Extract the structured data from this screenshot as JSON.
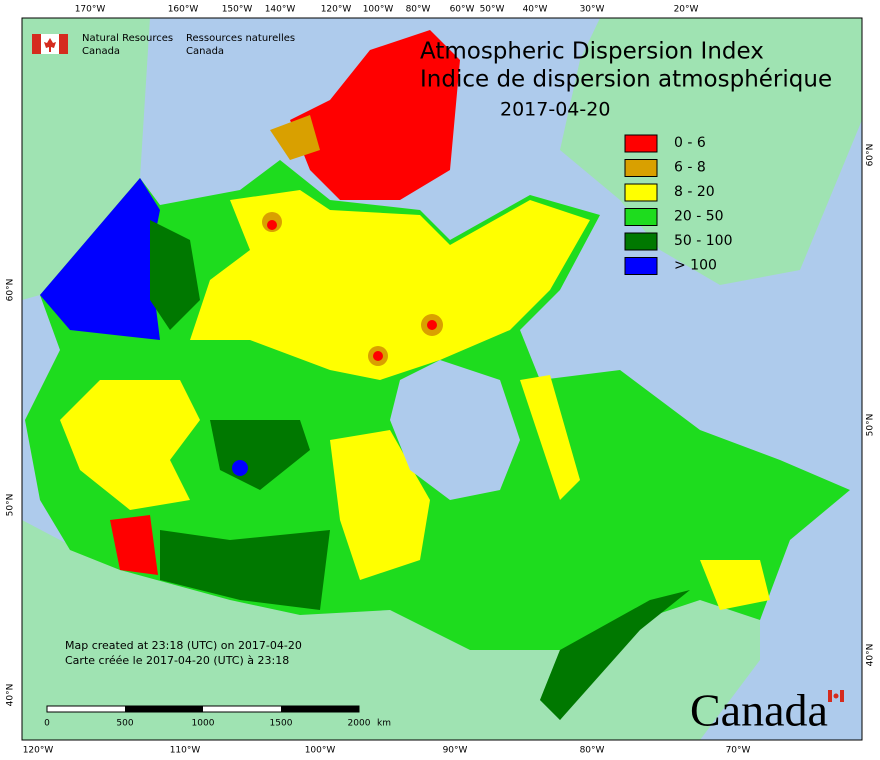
{
  "header": {
    "agency_en": [
      "Natural Resources",
      "Canada"
    ],
    "agency_fr": [
      "Ressources naturelles",
      "Canada"
    ]
  },
  "title": {
    "line_en": "Atmospheric Dispersion Index",
    "line_fr": "Indice de dispersion atmosphérique",
    "date": "2017-04-20"
  },
  "legend": [
    {
      "label": "0 - 6",
      "color": "#ff0000"
    },
    {
      "label": "6 - 8",
      "color": "#d9a000"
    },
    {
      "label": "8 - 20",
      "color": "#ffff00"
    },
    {
      "label": "20 - 50",
      "color": "#1edc1e"
    },
    {
      "label": "50 - 100",
      "color": "#007800"
    },
    {
      "label": "> 100",
      "color": "#0000ff"
    }
  ],
  "longitude_top": [
    "170°W",
    "160°W",
    "150°W",
    "140°W",
    "120°W",
    "100°W",
    "80°W",
    "60°W",
    "50°W",
    "40°W",
    "30°W",
    "20°W"
  ],
  "longitude_bottom": [
    "120°W",
    "110°W",
    "100°W",
    "90°W",
    "80°W",
    "70°W"
  ],
  "latitude_left": [
    "60°N",
    "50°N",
    "40°N"
  ],
  "latitude_right": [
    "60°N",
    "50°N",
    "40°N"
  ],
  "footnote": [
    "Map created at 23:18 (UTC) on 2017-04-20",
    "Carte créée le 2017-04-20 (UTC) à 23:18"
  ],
  "scale": {
    "ticks": [
      "0",
      "500",
      "1000",
      "1500",
      "2000"
    ],
    "unit": "km"
  },
  "wordmark": "Canada"
}
